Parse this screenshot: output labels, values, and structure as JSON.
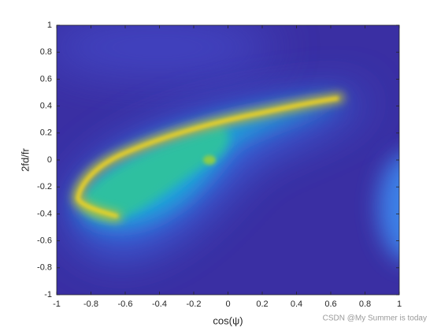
{
  "chart_data": {
    "type": "heatmap",
    "xlabel": "cos(ψ)",
    "ylabel": "2fd/fr",
    "xlim": [
      -1,
      1
    ],
    "ylim": [
      -1,
      1
    ],
    "xticks": [
      -1,
      -0.8,
      -0.6,
      -0.4,
      -0.2,
      0,
      0.2,
      0.4,
      0.6,
      0.8,
      1
    ],
    "yticks": [
      -1,
      -0.8,
      -0.6,
      -0.4,
      -0.2,
      0,
      0.2,
      0.4,
      0.6,
      0.8,
      1
    ],
    "watermark": "CSDN @My Summer is today"
  }
}
